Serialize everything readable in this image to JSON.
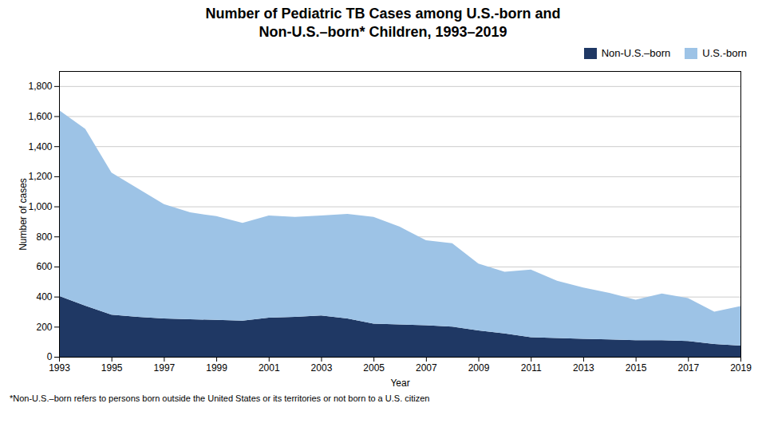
{
  "chart_data": {
    "type": "area",
    "stacked": true,
    "title": "Number of Pediatric TB Cases among U.S.-born and\nNon-U.S.–born* Children, 1993–2019",
    "xlabel": "Year",
    "ylabel": "Number of cases",
    "x": [
      1993,
      1994,
      1995,
      1996,
      1997,
      1998,
      1999,
      2000,
      2001,
      2002,
      2003,
      2004,
      2005,
      2006,
      2007,
      2008,
      2009,
      2010,
      2011,
      2012,
      2013,
      2014,
      2015,
      2016,
      2017,
      2018,
      2019
    ],
    "series": [
      {
        "name": "Non-U.S.–born",
        "color": "#1F3864",
        "values": [
          405,
          340,
          280,
          265,
          255,
          250,
          245,
          240,
          260,
          265,
          275,
          255,
          220,
          215,
          210,
          200,
          175,
          155,
          130,
          125,
          120,
          115,
          110,
          110,
          105,
          85,
          74
        ]
      },
      {
        "name": "U.S.-born",
        "color": "#9DC3E6",
        "values": [
          1235,
          1175,
          945,
          855,
          760,
          710,
          690,
          650,
          680,
          665,
          665,
          695,
          710,
          650,
          565,
          555,
          445,
          410,
          450,
          380,
          340,
          310,
          270,
          310,
          285,
          215,
          263
        ]
      }
    ],
    "xlim": [
      1993,
      2019
    ],
    "xticks": [
      1993,
      1995,
      1997,
      1999,
      2001,
      2003,
      2005,
      2007,
      2009,
      2011,
      2013,
      2015,
      2017,
      2019
    ],
    "ylim": [
      0,
      1900
    ],
    "yticks": [
      0,
      200,
      400,
      600,
      800,
      {
        "value": 1000,
        "label": "1,000"
      },
      {
        "value": 1200,
        "label": "1,200"
      },
      {
        "value": 1400,
        "label": "1,400"
      },
      {
        "value": 1600,
        "label": "1,600"
      },
      {
        "value": 1800,
        "label": "1,800"
      }
    ],
    "grid": true,
    "legend": "upper right",
    "footnote": "*Non-U.S.–born refers to persons born outside the United States or its territories or not born to a U.S. citizen"
  }
}
